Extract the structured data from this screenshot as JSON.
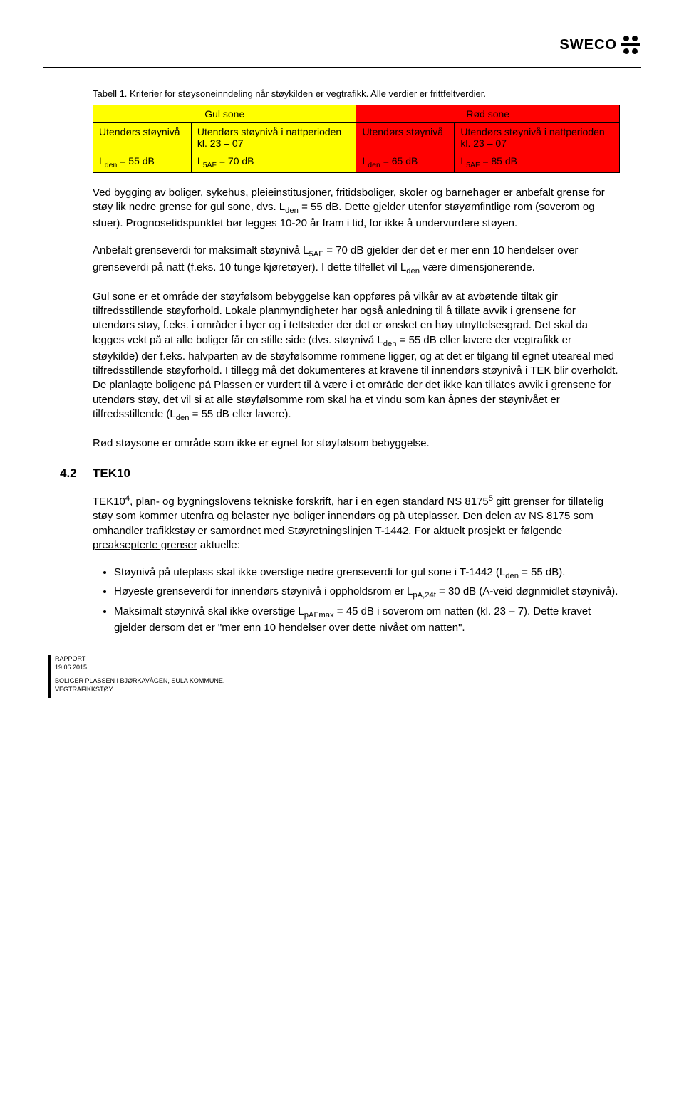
{
  "header": {
    "logo_text": "SWECO"
  },
  "table": {
    "caption": "Tabell 1. Kriterier for støysoneinndeling når støykilden er vegtrafikk. Alle verdier er frittfeltverdier.",
    "group_headers": [
      "Gul sone",
      "Rød sone"
    ],
    "sub_headers": [
      "Utendørs støynivå",
      "Utendørs støynivå i nattperioden\nkl. 23 – 07",
      "Utendørs støynivå",
      "Utendørs støynivå i nattperioden\nkl. 23 – 07"
    ],
    "row_cells": [
      "L_den = 55 dB",
      "L_5AF = 70 dB",
      "L_den = 65 dB",
      "L_5AF = 85 dB"
    ],
    "colors": {
      "yellow": "#ffff00",
      "red": "#ff0000"
    }
  },
  "paragraphs": {
    "p1": "Ved bygging av boliger, sykehus, pleieinstitusjoner, fritidsboliger, skoler og barnehager er anbefalt grense for støy lik nedre grense for gul sone, dvs. L_den = 55 dB. Dette gjelder utenfor støyømfintlige rom (soverom og stuer). Prognosetidspunktet bør legges 10-20 år fram i tid, for ikke å undervurdere støyen.",
    "p2": "Anbefalt grenseverdi for maksimalt støynivå L_5AF = 70 dB gjelder der det er mer enn 10 hendelser over grenseverdi på natt (f.eks. 10 tunge kjøretøyer). I dette tilfellet vil L_den være dimensjonerende.",
    "p3": "Gul sone er et område der støyfølsom bebyggelse kan oppføres på vilkår av at avbøtende tiltak gir tilfredsstillende støyforhold. Lokale planmyndigheter har også anledning til å tillate avvik i grensene for utendørs støy, f.eks. i områder i byer og i tettsteder der det er ønsket en høy utnyttelsesgrad. Det skal da legges vekt på at alle boliger får en stille side (dvs. støynivå L_den = 55 dB eller lavere der vegtrafikk er støykilde) der f.eks. halvparten av de støyfølsomme rommene ligger, og at det er tilgang til egnet uteareal med tilfredsstillende støyforhold. I tillegg må det dokumenteres at kravene til innendørs støynivå i TEK blir overholdt. De planlagte boligene på Plassen er vurdert til å være i et område der det ikke kan tillates avvik i grensene for utendørs støy, det vil si at alle støyfølsomme rom skal ha et vindu som kan åpnes der støynivået er tilfredsstillende (L_den = 55 dB eller lavere).",
    "p4": "Rød støysone er område som ikke er egnet for støyfølsom bebyggelse."
  },
  "section": {
    "num": "4.2",
    "title": "TEK10",
    "intro": "TEK10^4, plan- og bygningslovens tekniske forskrift, har i en egen standard NS 8175^5 gitt grenser for tillatelig støy som kommer utenfra og belaster nye boliger innendørs og på uteplasser. Den delen av NS 8175 som omhandler trafikkstøy er samordnet med Støyretningslinjen T-1442. For aktuelt prosjekt er følgende preaksepterte grenser aktuelle:",
    "bullets": [
      "Støynivå på uteplass skal ikke overstige nedre grenseverdi for gul sone i T-1442 (L_den = 55 dB).",
      "Høyeste grenseverdi for innendørs støynivå i oppholdsrom er L_pA,24t = 30 dB (A-veid døgnmidlet støynivå).",
      "Maksimalt støynivå skal ikke overstige L_pAFmax = 45 dB i soverom om natten (kl. 23 – 7). Dette kravet gjelder dersom det er \"mer enn 10 hendelser over dette nivået om natten\"."
    ]
  },
  "footer": {
    "l1": "RAPPORT",
    "l2": "19.06.2015",
    "l3": "BOLIGER PLASSEN I BJØRKAVÅGEN, SULA KOMMUNE.",
    "l4": "VEGTRAFIKKSTØY."
  }
}
